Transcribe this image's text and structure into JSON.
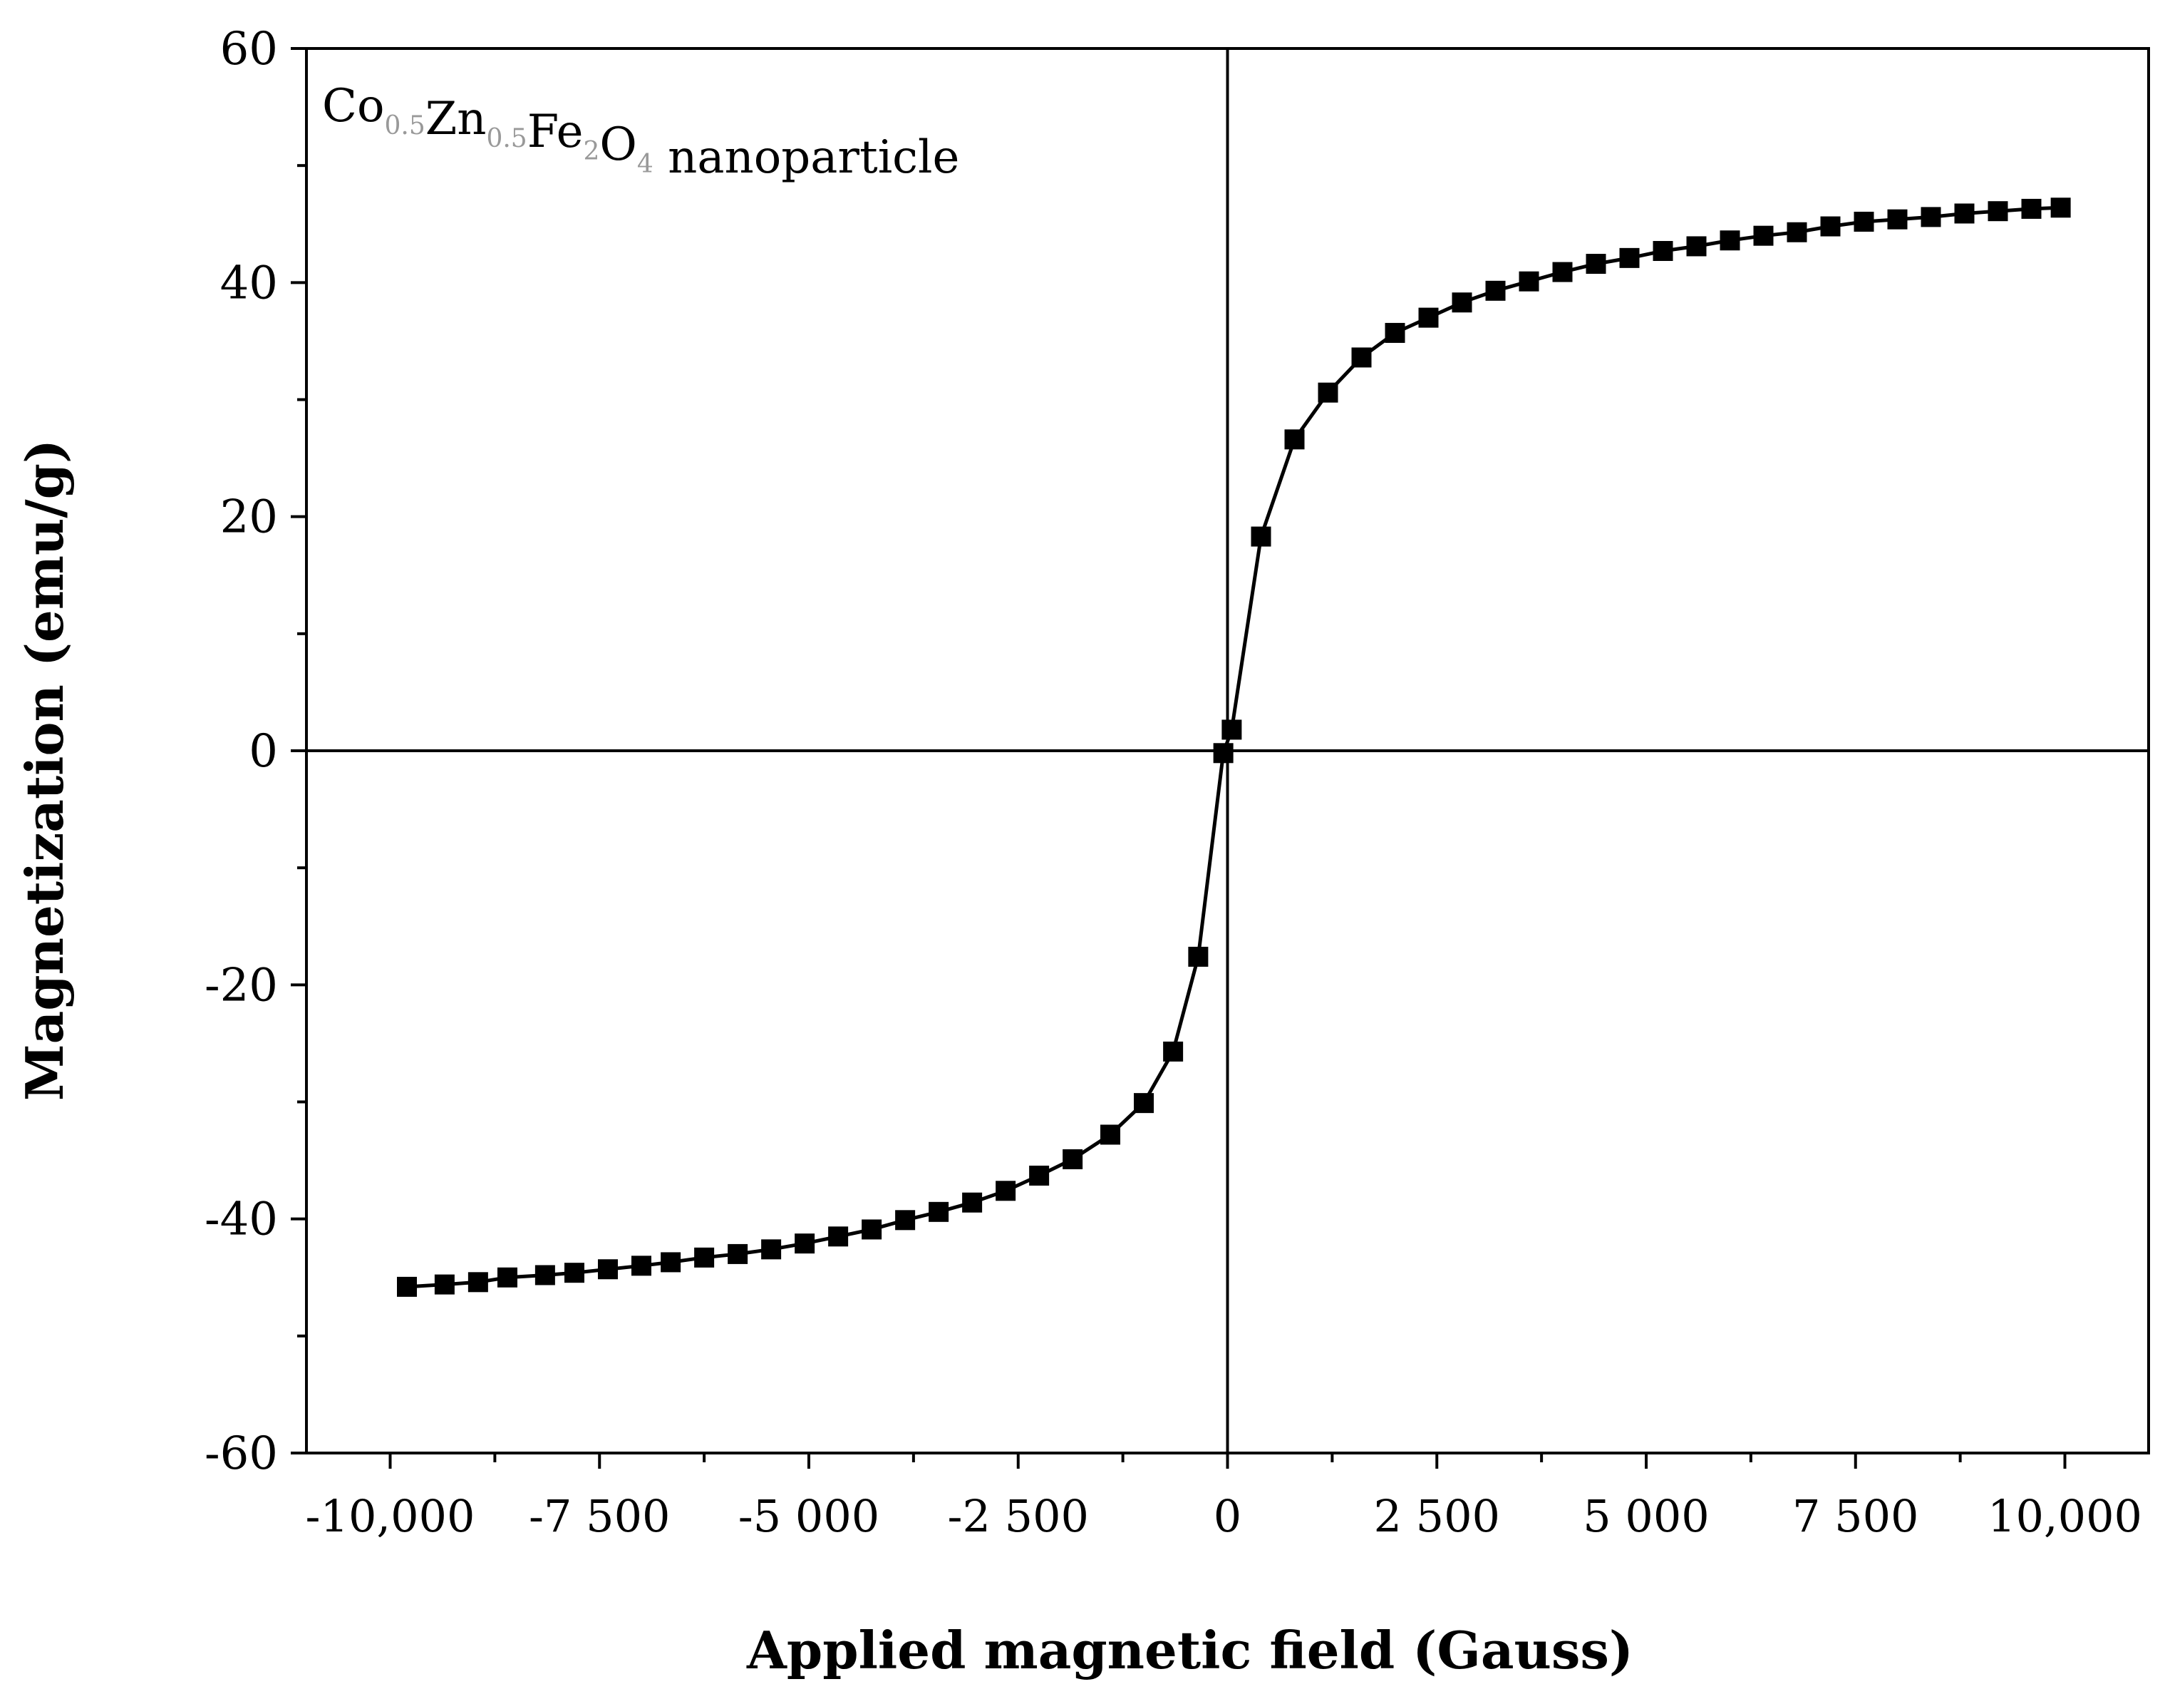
{
  "chart_data": {
    "type": "scatter",
    "annotation": {
      "parts": [
        {
          "text": "Co",
          "sub": false
        },
        {
          "text": "0.5",
          "sub": true
        },
        {
          "text": "Zn",
          "sub": false
        },
        {
          "text": "0.5",
          "sub": true
        },
        {
          "text": "Fe",
          "sub": false
        },
        {
          "text": "2",
          "sub": true
        },
        {
          "text": "O",
          "sub": false
        },
        {
          "text": "4",
          "sub": true
        },
        {
          "text": " nanoparticle",
          "sub": false
        }
      ]
    },
    "xlabel": "Applied magnetic field (Gauss)",
    "ylabel": "Magnetization (emu/g)",
    "xlim": [
      -11000,
      11000
    ],
    "ylim": [
      -60,
      60
    ],
    "x_ticks": [
      -10000,
      -7500,
      -5000,
      -2500,
      0,
      2500,
      5000,
      7500,
      10000
    ],
    "x_tick_labels": [
      "-10,000",
      "-7 500",
      "-5 000",
      "-2 500",
      "0",
      "2 500",
      "5 000",
      "7 500",
      "10,000"
    ],
    "y_ticks": [
      -60,
      -40,
      -20,
      0,
      20,
      40,
      60
    ],
    "y_tick_labels": [
      "-60",
      "-40",
      "-20",
      "0",
      "20",
      "40",
      "60"
    ],
    "grid": false,
    "series": [
      {
        "line": true,
        "marker": "square",
        "points": [
          {
            "x": -9800,
            "y": -45.8
          },
          {
            "x": -9350,
            "y": -45.6
          },
          {
            "x": -8950,
            "y": -45.4
          },
          {
            "x": -8600,
            "y": -45.0
          },
          {
            "x": -8150,
            "y": -44.8
          },
          {
            "x": -7800,
            "y": -44.6
          },
          {
            "x": -7400,
            "y": -44.3
          },
          {
            "x": -7000,
            "y": -44.0
          },
          {
            "x": -6650,
            "y": -43.7
          },
          {
            "x": -6250,
            "y": -43.3
          },
          {
            "x": -5850,
            "y": -43.0
          },
          {
            "x": -5450,
            "y": -42.6
          },
          {
            "x": -5050,
            "y": -42.1
          },
          {
            "x": -4650,
            "y": -41.5
          },
          {
            "x": -4250,
            "y": -40.9
          },
          {
            "x": -3850,
            "y": -40.1
          },
          {
            "x": -3450,
            "y": -39.4
          },
          {
            "x": -3050,
            "y": -38.6
          },
          {
            "x": -2650,
            "y": -37.6
          },
          {
            "x": -2250,
            "y": -36.3
          },
          {
            "x": -1850,
            "y": -34.9
          },
          {
            "x": -1400,
            "y": -32.8
          },
          {
            "x": -1000,
            "y": -30.1
          },
          {
            "x": -650,
            "y": -25.7
          },
          {
            "x": -350,
            "y": -17.6
          },
          {
            "x": -50,
            "y": -0.2
          },
          {
            "x": 50,
            "y": 1.8
          },
          {
            "x": 400,
            "y": 18.3
          },
          {
            "x": 800,
            "y": 26.6
          },
          {
            "x": 1200,
            "y": 30.6
          },
          {
            "x": 1600,
            "y": 33.6
          },
          {
            "x": 2000,
            "y": 35.7
          },
          {
            "x": 2400,
            "y": 37.0
          },
          {
            "x": 2800,
            "y": 38.3
          },
          {
            "x": 3200,
            "y": 39.3
          },
          {
            "x": 3600,
            "y": 40.1
          },
          {
            "x": 4000,
            "y": 40.9
          },
          {
            "x": 4400,
            "y": 41.6
          },
          {
            "x": 4800,
            "y": 42.1
          },
          {
            "x": 5200,
            "y": 42.7
          },
          {
            "x": 5600,
            "y": 43.1
          },
          {
            "x": 6000,
            "y": 43.6
          },
          {
            "x": 6400,
            "y": 44.0
          },
          {
            "x": 6800,
            "y": 44.3
          },
          {
            "x": 7200,
            "y": 44.8
          },
          {
            "x": 7600,
            "y": 45.2
          },
          {
            "x": 8000,
            "y": 45.4
          },
          {
            "x": 8400,
            "y": 45.6
          },
          {
            "x": 8800,
            "y": 45.9
          },
          {
            "x": 9200,
            "y": 46.1
          },
          {
            "x": 9600,
            "y": 46.3
          },
          {
            "x": 9950,
            "y": 46.4
          }
        ]
      }
    ]
  }
}
